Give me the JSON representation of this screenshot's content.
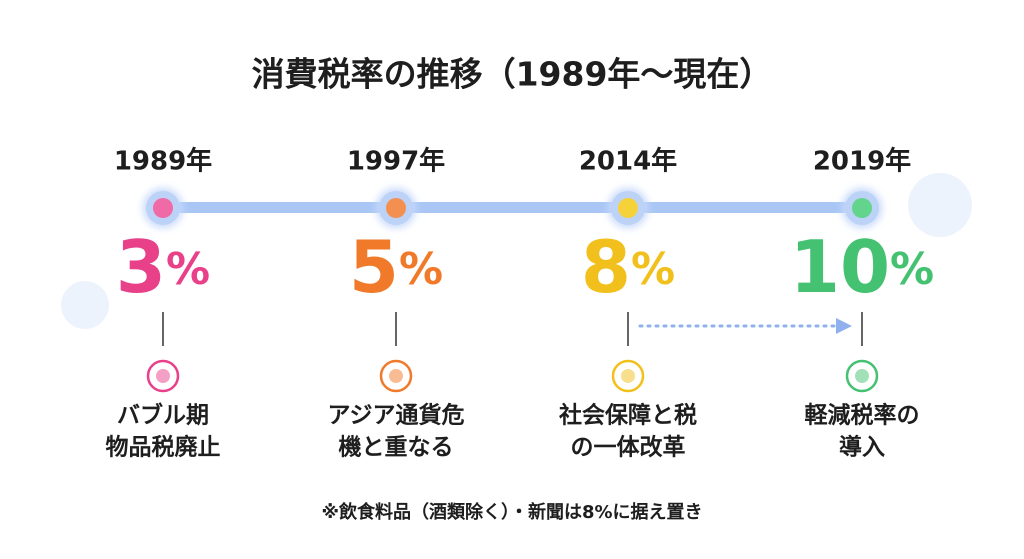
{
  "title": "消費税率の推移（1989年〜現在）",
  "events": [
    {
      "year": "1989年",
      "rate": 3,
      "unit": "%",
      "color": "#e8418a",
      "dot": "#f06aa5",
      "note": [
        "バブル期",
        "物品税廃止"
      ]
    },
    {
      "year": "1997年",
      "rate": 5,
      "unit": "%",
      "color": "#f07a2a",
      "dot": "#f39050",
      "note": [
        "アジア通貨危",
        "機と重なる"
      ]
    },
    {
      "year": "2014年",
      "rate": 8,
      "unit": "%",
      "color": "#f2c01c",
      "dot": "#f5d23a",
      "note": [
        "社会保障と税",
        "の一体改革"
      ]
    },
    {
      "year": "2019年",
      "rate": 10,
      "unit": "%",
      "color": "#45c172",
      "dot": "#62d48c",
      "note": [
        "軽減税率の",
        "導入"
      ]
    }
  ],
  "footnote": "※飲食料品（酒類除く）・新聞は8%に据え置き"
}
